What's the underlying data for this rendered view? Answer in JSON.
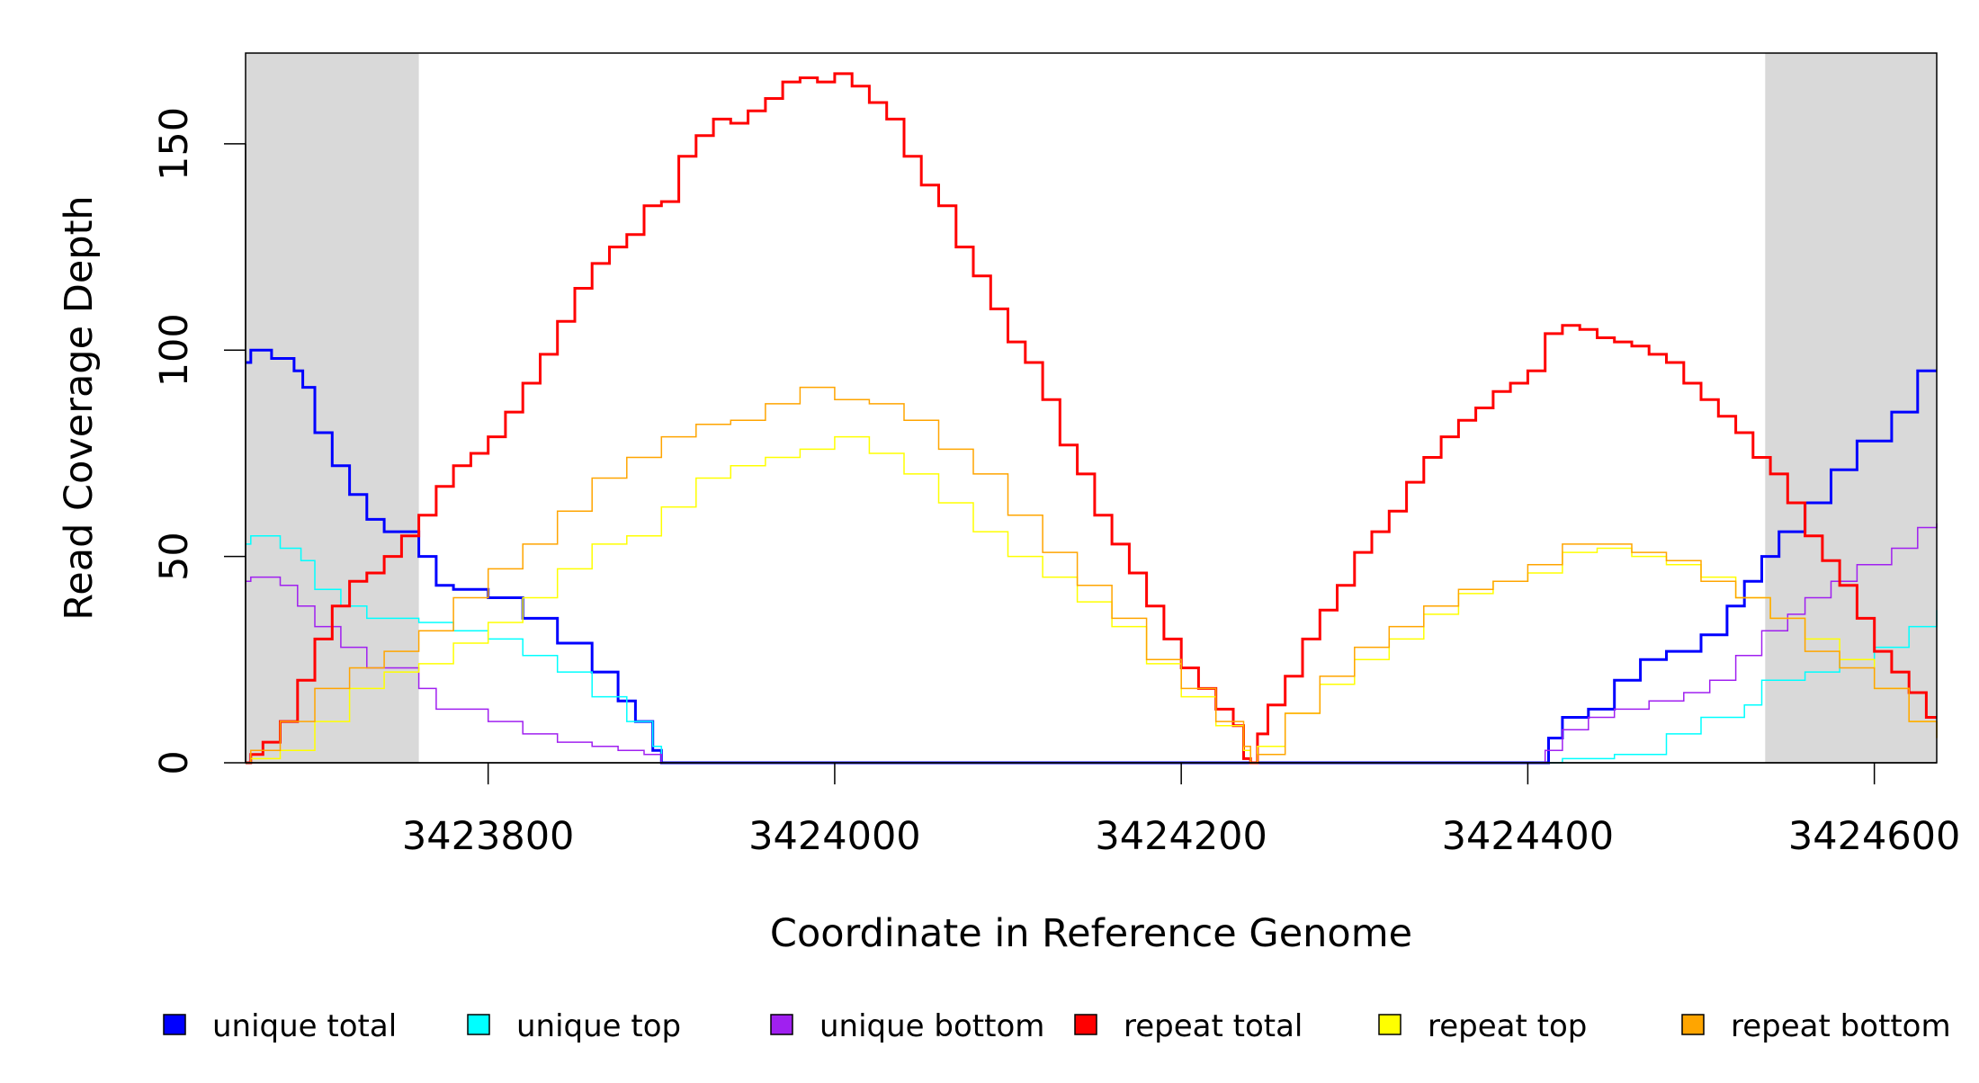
{
  "chart_data": {
    "type": "line",
    "xlabel": "Coordinate in Reference Genome",
    "ylabel": "Read Coverage Depth",
    "xlim": [
      3423660,
      3424636
    ],
    "ylim": [
      0,
      172
    ],
    "x_ticks": [
      3423800,
      3424000,
      3424200,
      3424400,
      3424600
    ],
    "x_tick_labels": [
      "3423800",
      "3424000",
      "3424200",
      "3424400",
      "3424600"
    ],
    "y_ticks": [
      0,
      50,
      100,
      150
    ],
    "y_tick_labels": [
      "0",
      "50",
      "100",
      "150"
    ],
    "grid": false,
    "legend_position": "bottom",
    "shaded_regions": [
      {
        "x_start": 3423660,
        "x_end": 3423760,
        "color": "#d9d9d9"
      },
      {
        "x_start": 3424537,
        "x_end": 3424636,
        "color": "#d9d9d9"
      }
    ],
    "series": [
      {
        "name": "unique total",
        "color": "#0000ff",
        "width": 3,
        "x": [
          3423660,
          3423663,
          3423675,
          3423688,
          3423693,
          3423700,
          3423710,
          3423720,
          3423730,
          3423740,
          3423760,
          3423770,
          3423780,
          3423800,
          3423820,
          3423840,
          3423860,
          3423875,
          3423885,
          3423895,
          3423900,
          3424405,
          3424412,
          3424420,
          3424435,
          3424450,
          3424465,
          3424480,
          3424500,
          3424515,
          3424525,
          3424535,
          3424545,
          3424560,
          3424575,
          3424590,
          3424610,
          3424625,
          3424636
        ],
        "y": [
          97,
          100,
          98,
          95,
          91,
          80,
          72,
          65,
          59,
          56,
          50,
          43,
          42,
          40,
          35,
          29,
          22,
          15,
          10,
          3,
          0,
          0,
          6,
          11,
          13,
          20,
          25,
          27,
          31,
          38,
          44,
          50,
          56,
          63,
          71,
          78,
          85,
          95,
          95
        ]
      },
      {
        "name": "unique top",
        "color": "#00ffff",
        "width": 1.5,
        "x": [
          3423660,
          3423663,
          3423680,
          3423692,
          3423700,
          3423715,
          3423730,
          3423760,
          3423780,
          3423800,
          3423820,
          3423840,
          3423860,
          3423880,
          3423895,
          3423900,
          3424415,
          3424420,
          3424450,
          3424480,
          3424500,
          3424525,
          3424535,
          3424560,
          3424580,
          3424600,
          3424620,
          3424636
        ],
        "y": [
          53,
          55,
          52,
          49,
          42,
          38,
          35,
          34,
          32,
          30,
          26,
          22,
          16,
          10,
          4,
          0,
          0,
          1,
          2,
          7,
          11,
          14,
          20,
          22,
          25,
          28,
          33,
          37
        ]
      },
      {
        "name": "unique bottom",
        "color": "#a020f0",
        "width": 1.5,
        "x": [
          3423660,
          3423663,
          3423680,
          3423690,
          3423700,
          3423715,
          3423730,
          3423760,
          3423770,
          3423800,
          3423820,
          3423840,
          3423860,
          3423875,
          3423890,
          3423900,
          3424405,
          3424410,
          3424420,
          3424435,
          3424450,
          3424470,
          3424490,
          3424505,
          3424520,
          3424535,
          3424550,
          3424560,
          3424575,
          3424590,
          3424610,
          3424625,
          3424636
        ],
        "y": [
          44,
          45,
          43,
          38,
          33,
          28,
          23,
          18,
          13,
          10,
          7,
          5,
          4,
          3,
          2,
          0,
          0,
          3,
          8,
          11,
          13,
          15,
          17,
          20,
          26,
          32,
          36,
          40,
          44,
          48,
          52,
          57,
          58
        ]
      },
      {
        "name": "repeat total",
        "color": "#ff0000",
        "width": 3,
        "x": [
          3423660,
          3423663,
          3423670,
          3423680,
          3423690,
          3423700,
          3423710,
          3423720,
          3423730,
          3423740,
          3423750,
          3423760,
          3423770,
          3423780,
          3423790,
          3423800,
          3423810,
          3423820,
          3423830,
          3423840,
          3423850,
          3423860,
          3423870,
          3423880,
          3423890,
          3423900,
          3423910,
          3423920,
          3423930,
          3423940,
          3423950,
          3423960,
          3423970,
          3423980,
          3423990,
          3424000,
          3424010,
          3424020,
          3424030,
          3424040,
          3424050,
          3424060,
          3424070,
          3424080,
          3424090,
          3424100,
          3424110,
          3424120,
          3424130,
          3424140,
          3424150,
          3424160,
          3424170,
          3424180,
          3424190,
          3424200,
          3424210,
          3424220,
          3424230,
          3424236,
          3424240,
          3424244,
          3424250,
          3424260,
          3424270,
          3424280,
          3424290,
          3424300,
          3424310,
          3424320,
          3424330,
          3424340,
          3424350,
          3424360,
          3424370,
          3424380,
          3424390,
          3424400,
          3424410,
          3424420,
          3424430,
          3424440,
          3424450,
          3424460,
          3424470,
          3424480,
          3424490,
          3424500,
          3424510,
          3424520,
          3424530,
          3424540,
          3424550,
          3424560,
          3424570,
          3424580,
          3424590,
          3424600,
          3424610,
          3424620,
          3424630,
          3424636
        ],
        "y": [
          0,
          2,
          5,
          10,
          20,
          30,
          38,
          44,
          46,
          50,
          55,
          60,
          67,
          72,
          75,
          79,
          85,
          92,
          99,
          107,
          115,
          121,
          125,
          128,
          135,
          136,
          147,
          152,
          156,
          155,
          158,
          161,
          165,
          166,
          165,
          167,
          164,
          160,
          156,
          147,
          140,
          135,
          125,
          118,
          110,
          102,
          97,
          88,
          77,
          70,
          60,
          53,
          46,
          38,
          30,
          23,
          18,
          13,
          9,
          1,
          0,
          7,
          14,
          21,
          30,
          37,
          43,
          51,
          56,
          61,
          68,
          74,
          79,
          83,
          86,
          90,
          92,
          95,
          104,
          106,
          105,
          103,
          102,
          101,
          99,
          97,
          92,
          88,
          84,
          80,
          74,
          70,
          63,
          55,
          49,
          43,
          35,
          27,
          22,
          17,
          11,
          11
        ]
      },
      {
        "name": "repeat top",
        "color": "#ffff00",
        "width": 1.5,
        "x": [
          3423660,
          3423663,
          3423680,
          3423700,
          3423720,
          3423740,
          3423760,
          3423780,
          3423800,
          3423820,
          3423840,
          3423860,
          3423880,
          3423900,
          3423920,
          3423940,
          3423960,
          3423980,
          3424000,
          3424020,
          3424040,
          3424060,
          3424080,
          3424100,
          3424120,
          3424140,
          3424160,
          3424180,
          3424200,
          3424220,
          3424236,
          3424240,
          3424244,
          3424260,
          3424280,
          3424300,
          3424320,
          3424340,
          3424360,
          3424380,
          3424400,
          3424420,
          3424440,
          3424460,
          3424480,
          3424500,
          3424520,
          3424540,
          3424560,
          3424580,
          3424600,
          3424620,
          3424636
        ],
        "y": [
          0,
          1,
          3,
          10,
          18,
          22,
          24,
          29,
          34,
          40,
          47,
          53,
          55,
          62,
          69,
          72,
          74,
          76,
          79,
          75,
          70,
          63,
          56,
          50,
          45,
          39,
          33,
          24,
          16,
          9,
          3,
          0,
          4,
          12,
          19,
          25,
          30,
          36,
          41,
          44,
          46,
          51,
          52,
          50,
          48,
          45,
          40,
          35,
          30,
          25,
          18,
          10,
          6
        ]
      },
      {
        "name": "repeat bottom",
        "color": "#ffa500",
        "width": 1.5,
        "x": [
          3423660,
          3423663,
          3423680,
          3423700,
          3423720,
          3423740,
          3423760,
          3423780,
          3423800,
          3423820,
          3423840,
          3423860,
          3423880,
          3423900,
          3423920,
          3423940,
          3423960,
          3423980,
          3424000,
          3424020,
          3424040,
          3424060,
          3424080,
          3424100,
          3424120,
          3424140,
          3424160,
          3424180,
          3424200,
          3424220,
          3424236,
          3424240,
          3424244,
          3424260,
          3424280,
          3424300,
          3424320,
          3424340,
          3424360,
          3424380,
          3424400,
          3424420,
          3424440,
          3424460,
          3424480,
          3424500,
          3424520,
          3424540,
          3424560,
          3424580,
          3424600,
          3424620,
          3424636
        ],
        "y": [
          0,
          3,
          10,
          18,
          23,
          27,
          32,
          40,
          47,
          53,
          61,
          69,
          74,
          79,
          82,
          83,
          87,
          91,
          88,
          87,
          83,
          76,
          70,
          60,
          51,
          43,
          35,
          25,
          18,
          10,
          4,
          0,
          2,
          12,
          21,
          28,
          33,
          38,
          42,
          44,
          48,
          53,
          53,
          51,
          49,
          44,
          40,
          35,
          27,
          23,
          18,
          10,
          6
        ]
      }
    ],
    "legend": [
      {
        "label": "unique total",
        "color": "#0000ff"
      },
      {
        "label": "unique top",
        "color": "#00ffff"
      },
      {
        "label": "unique bottom",
        "color": "#a020f0"
      },
      {
        "label": "repeat total",
        "color": "#ff0000"
      },
      {
        "label": "repeat top",
        "color": "#ffff00"
      },
      {
        "label": "repeat bottom",
        "color": "#ffa500"
      }
    ]
  }
}
